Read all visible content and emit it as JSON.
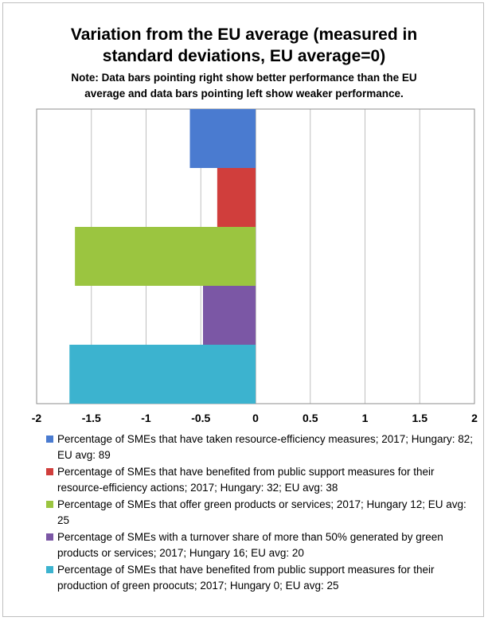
{
  "chart_data": {
    "type": "bar",
    "orientation": "horizontal",
    "title_lines": [
      "Variation from the EU average (measured in",
      "standard deviations, EU average=0)"
    ],
    "subtitle_lines": [
      "Note: Data bars pointing right show better performance than the EU",
      "average and data bars pointing left show weaker performance."
    ],
    "xlim": [
      -2,
      2
    ],
    "x_ticks": [
      -2,
      -1.5,
      -1,
      -0.5,
      0,
      0.5,
      1,
      1.5,
      2
    ],
    "x_tick_labels": [
      "-2",
      "-1.5",
      "-1",
      "-0.5",
      "0",
      "0.5",
      "1",
      "1.5",
      "2"
    ],
    "grid": "vertical",
    "legend_placement": "bottom",
    "series": [
      {
        "name": "Percentage of SMEs that have taken resource-efficiency measures; 2017; Hungary: 82; EU avg: 89",
        "value": -0.6,
        "color": "#4a7bd0"
      },
      {
        "name": "Percentage of SMEs that have benefited from public support measures for their resource-efficiency actions; 2017; Hungary: 32; EU avg: 38",
        "value": -0.35,
        "color": "#d03e3c"
      },
      {
        "name": "Percentage of SMEs that offer green products or services; 2017; Hungary 12; EU avg: 25",
        "value": -1.65,
        "color": "#9bc540"
      },
      {
        "name": "Percentage of SMEs with a turnover share of more than 50% generated by green products or services; 2017; Hungary 16; EU avg: 20",
        "value": -0.48,
        "color": "#7b57a5"
      },
      {
        "name": "Percentage of SMEs that have benefited from public support measures for their production of green proocuts; 2017; Hungary 0; EU avg: 25",
        "value": -1.7,
        "color": "#3cb3cf"
      }
    ]
  }
}
